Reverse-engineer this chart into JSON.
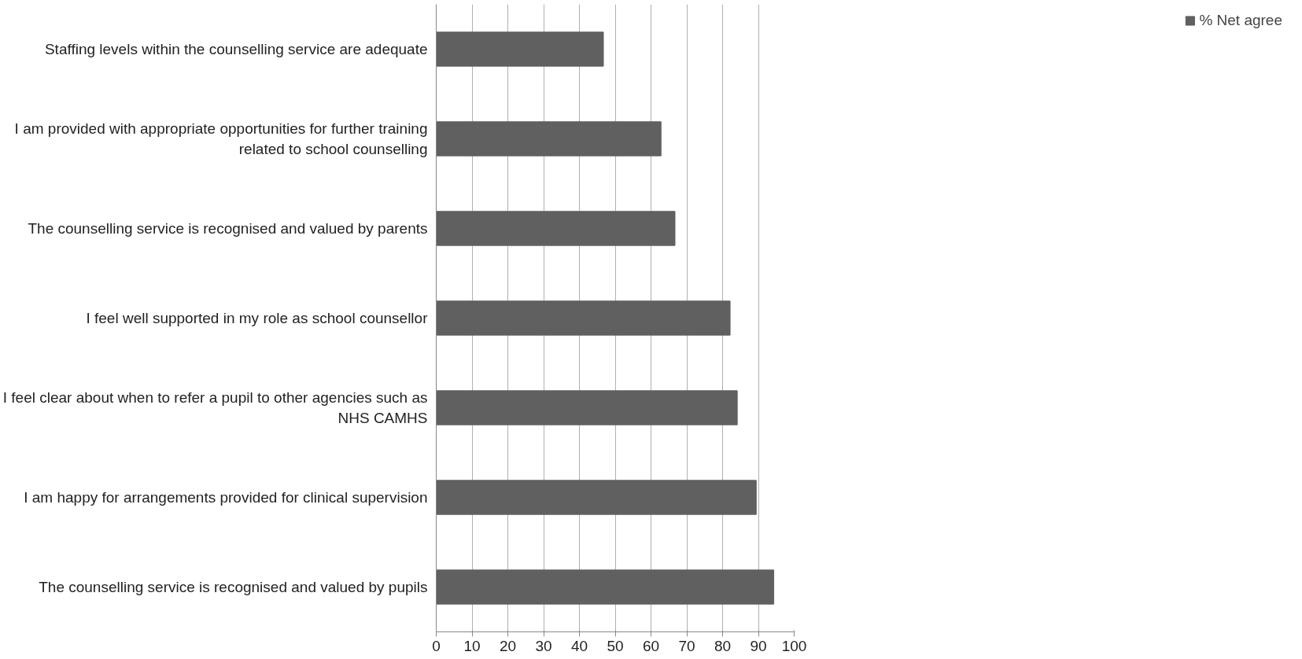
{
  "chart_data": {
    "type": "bar",
    "orientation": "horizontal",
    "categories": [
      "Staffing levels within the counselling service are adequate",
      "I am provided with appropriate opportunities for further training related to school counselling",
      "The counselling service is recognised and valued by parents",
      "I feel well supported in my role as school counsellor",
      "I feel clear about when to refer a pupil to other agencies such as NHS CAMHS",
      "I am happy for arrangements provided for clinical supervision",
      "The counselling service is recognised and valued by pupils"
    ],
    "series": [
      {
        "name": "% Net agree",
        "color": "#606060",
        "values": [
          46.7,
          62.8,
          66.7,
          82.1,
          84.1,
          89.4,
          94.3
        ]
      }
    ],
    "xlim": [
      0,
      100
    ],
    "xticks": [
      0,
      10,
      20,
      30,
      40,
      50,
      60,
      70,
      80,
      90,
      100
    ],
    "grid": "x",
    "legend": "right"
  }
}
